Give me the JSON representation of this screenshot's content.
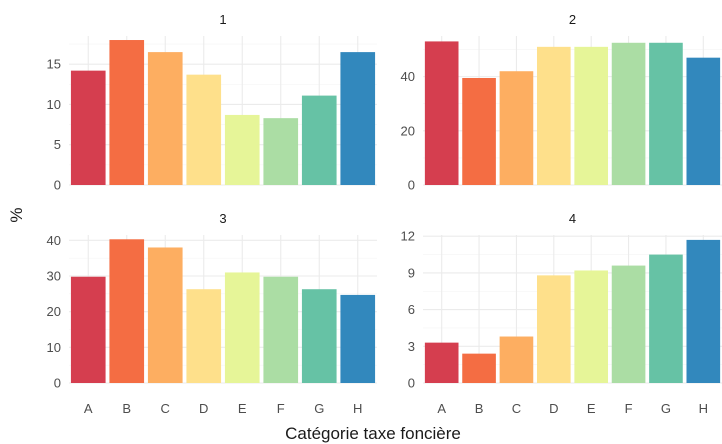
{
  "chart_data": {
    "type": "bar",
    "xlabel": "Catégorie taxe foncière",
    "ylabel": "%",
    "categories": [
      "A",
      "B",
      "C",
      "D",
      "E",
      "F",
      "G",
      "H"
    ],
    "colors": [
      "#D53E4F",
      "#F46D43",
      "#FDAE61",
      "#FEE08B",
      "#E6F598",
      "#ABDDA4",
      "#66C2A5",
      "#3288BD"
    ],
    "grid": true,
    "panels": [
      {
        "strip": "1",
        "ylim": [
          0,
          18.5
        ],
        "yticks": [
          0,
          5,
          10,
          15
        ],
        "values": [
          14.2,
          18.0,
          16.5,
          13.7,
          8.7,
          8.3,
          11.1,
          16.5
        ]
      },
      {
        "strip": "2",
        "ylim": [
          0,
          55
        ],
        "yticks": [
          0,
          20,
          40
        ],
        "values": [
          53.0,
          39.5,
          42.0,
          51.0,
          51.0,
          52.5,
          52.5,
          47.0
        ]
      },
      {
        "strip": "3",
        "ylim": [
          0,
          41.5
        ],
        "yticks": [
          0,
          10,
          20,
          30,
          40
        ],
        "values": [
          29.8,
          40.3,
          38.0,
          26.3,
          31.0,
          29.8,
          26.3,
          24.7
        ]
      },
      {
        "strip": "4",
        "ylim": [
          0,
          12.1
        ],
        "yticks": [
          0,
          3,
          6,
          9,
          12
        ],
        "values": [
          3.3,
          2.4,
          3.8,
          8.8,
          9.2,
          9.6,
          10.5,
          11.7
        ]
      }
    ]
  }
}
